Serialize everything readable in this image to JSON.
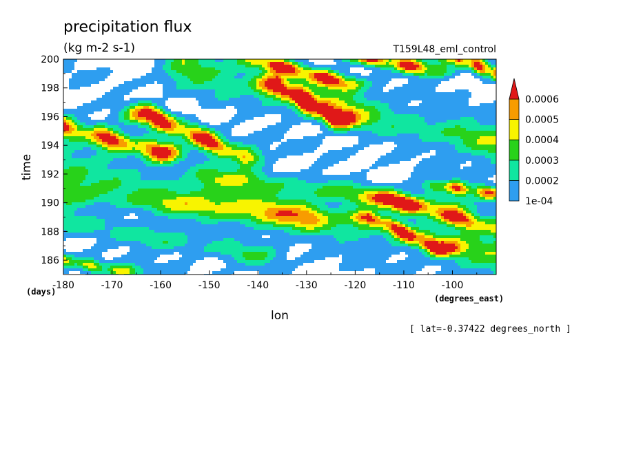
{
  "chart_data": {
    "type": "heatmap",
    "title": "precipitation flux",
    "units": "(kg m-2 s-1)",
    "experiment": "T159L48_eml_control",
    "xlabel": "lon",
    "x_units": "(degrees_east)",
    "ylabel": "time",
    "y_units": "(days)",
    "xlim": [
      -180,
      -91
    ],
    "ylim": [
      185,
      200
    ],
    "x_ticks": [
      -180,
      -170,
      -160,
      -150,
      -140,
      -130,
      -120,
      -110,
      -100
    ],
    "x_tick_labels": [
      "-180",
      "-170",
      "-160",
      "-150",
      "-140",
      "-130",
      "-120",
      "-110",
      "-100"
    ],
    "y_ticks": [
      186,
      188,
      190,
      192,
      194,
      196,
      198,
      200
    ],
    "y_tick_labels": [
      "186",
      "188",
      "190",
      "192",
      "194",
      "196",
      "198",
      "200"
    ],
    "footnote": "[ lat=-0.37422 degrees_north ]",
    "colorbar": {
      "levels": [
        0.0001,
        0.0002,
        0.0003,
        0.0004,
        0.0005,
        0.0006
      ],
      "labels": [
        "1e-04",
        "0.0002",
        "0.0003",
        "0.0004",
        "0.0005",
        "0.0006"
      ],
      "colors": [
        "#ffffff",
        "#2e9ef0",
        "#10e6a0",
        "#28d21a",
        "#f8f400",
        "#f89c00",
        "#e01818"
      ],
      "extend": "max"
    },
    "bands": [
      {
        "x0": -180,
        "t0": 195.3,
        "x1": -160,
        "t1": 193.5,
        "width": 1.1,
        "peak": 0.00065
      },
      {
        "x0": -163,
        "t0": 196.2,
        "x1": -143,
        "t1": 193.2,
        "width": 1.1,
        "peak": 0.00068
      },
      {
        "x0": -136,
        "t0": 198.2,
        "x1": -124,
        "t1": 195.8,
        "width": 1.0,
        "peak": 0.00066
      },
      {
        "x0": -140,
        "t0": 199.9,
        "x1": -122,
        "t1": 198.3,
        "width": 0.8,
        "peak": 0.00062
      },
      {
        "x0": -120,
        "t0": 200.3,
        "x1": -104,
        "t1": 199.2,
        "width": 0.8,
        "peak": 0.00064
      },
      {
        "x0": -100,
        "t0": 200.3,
        "x1": -91,
        "t1": 199.0,
        "width": 0.8,
        "peak": 0.00062
      },
      {
        "x0": -113,
        "t0": 190.2,
        "x1": -91,
        "t1": 188.2,
        "width": 0.9,
        "peak": 0.00058
      },
      {
        "x0": -117,
        "t0": 189.0,
        "x1": -103,
        "t1": 186.8,
        "width": 0.8,
        "peak": 0.00056
      },
      {
        "x0": -103,
        "t0": 191.2,
        "x1": -91,
        "t1": 190.6,
        "width": 0.7,
        "peak": 0.00054
      },
      {
        "x0": -180,
        "t0": 186.0,
        "x1": -168,
        "t1": 185.2,
        "width": 0.7,
        "peak": 0.00042
      },
      {
        "x0": -180,
        "t0": 192.2,
        "x1": -91,
        "t1": 186.5,
        "width": 2.2,
        "peak": 0.00027
      },
      {
        "x0": -155,
        "t0": 199.5,
        "x1": -91,
        "t1": 194.0,
        "width": 2.0,
        "peak": 0.0003
      },
      {
        "x0": -180,
        "t0": 190.5,
        "x1": -130,
        "t1": 189.0,
        "width": 1.2,
        "peak": 0.00024
      },
      {
        "x0": -150,
        "t0": 191.8,
        "x1": -100,
        "t1": 189.8,
        "width": 1.1,
        "peak": 0.00026
      },
      {
        "x0": -180,
        "t0": 188.6,
        "x1": -140,
        "t1": 186.2,
        "width": 1.1,
        "peak": 0.00022
      }
    ]
  }
}
